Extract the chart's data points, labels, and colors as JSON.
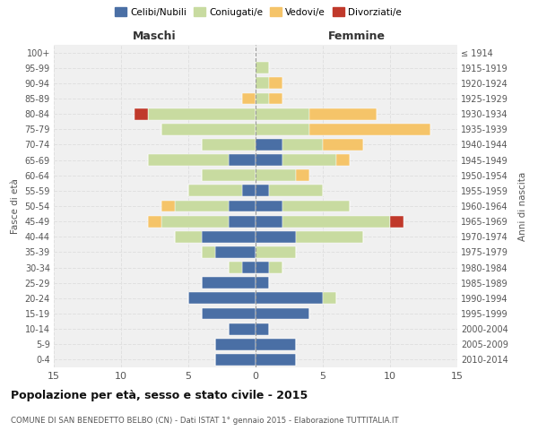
{
  "age_groups": [
    "100+",
    "95-99",
    "90-94",
    "85-89",
    "80-84",
    "75-79",
    "70-74",
    "65-69",
    "60-64",
    "55-59",
    "50-54",
    "45-49",
    "40-44",
    "35-39",
    "30-34",
    "25-29",
    "20-24",
    "15-19",
    "10-14",
    "5-9",
    "0-4"
  ],
  "birth_years": [
    "≤ 1914",
    "1915-1919",
    "1920-1924",
    "1925-1929",
    "1930-1934",
    "1935-1939",
    "1940-1944",
    "1945-1949",
    "1950-1954",
    "1955-1959",
    "1960-1964",
    "1965-1969",
    "1970-1974",
    "1975-1979",
    "1980-1984",
    "1985-1989",
    "1990-1994",
    "1995-1999",
    "2000-2004",
    "2005-2009",
    "2010-2014"
  ],
  "maschi_celibi": [
    0,
    0,
    0,
    0,
    0,
    0,
    0,
    2,
    0,
    1,
    2,
    2,
    4,
    3,
    1,
    4,
    5,
    4,
    2,
    3,
    3
  ],
  "maschi_coniugati": [
    0,
    0,
    0,
    0,
    8,
    7,
    4,
    6,
    4,
    4,
    4,
    5,
    2,
    1,
    1,
    0,
    0,
    0,
    0,
    0,
    0
  ],
  "maschi_vedovi": [
    0,
    0,
    0,
    1,
    0,
    0,
    0,
    0,
    0,
    0,
    1,
    1,
    0,
    0,
    0,
    0,
    0,
    0,
    0,
    0,
    0
  ],
  "maschi_divorziati": [
    0,
    0,
    0,
    0,
    1,
    0,
    0,
    0,
    0,
    0,
    0,
    0,
    0,
    0,
    0,
    0,
    0,
    0,
    0,
    0,
    0
  ],
  "femmine_celibi": [
    0,
    0,
    0,
    0,
    0,
    0,
    2,
    2,
    0,
    1,
    2,
    2,
    3,
    0,
    1,
    1,
    5,
    4,
    1,
    3,
    3
  ],
  "femmine_coniugati": [
    0,
    1,
    1,
    1,
    4,
    4,
    3,
    4,
    3,
    4,
    5,
    8,
    5,
    3,
    1,
    0,
    1,
    0,
    0,
    0,
    0
  ],
  "femmine_vedovi": [
    0,
    0,
    1,
    1,
    5,
    9,
    3,
    1,
    1,
    0,
    0,
    0,
    0,
    0,
    0,
    0,
    0,
    0,
    0,
    0,
    0
  ],
  "femmine_divorziati": [
    0,
    0,
    0,
    0,
    0,
    0,
    0,
    0,
    0,
    0,
    0,
    1,
    0,
    0,
    0,
    0,
    0,
    0,
    0,
    0,
    0
  ],
  "color_celibi": "#4a6fa5",
  "color_coniugati": "#c8dba0",
  "color_vedovi": "#f5c469",
  "color_divorziati": "#c0392b",
  "title": "Popolazione per età, sesso e stato civile - 2015",
  "subtitle": "COMUNE DI SAN BENEDETTO BELBO (CN) - Dati ISTAT 1° gennaio 2015 - Elaborazione TUTTITALIA.IT",
  "ylabel_left": "Fasce di età",
  "ylabel_right": "Anni di nascita",
  "xlabel_maschi": "Maschi",
  "xlabel_femmine": "Femmine",
  "xlim": 15,
  "bg_color": "#ffffff",
  "plot_bg": "#f0f0f0",
  "grid_color": "#e0e0e0"
}
